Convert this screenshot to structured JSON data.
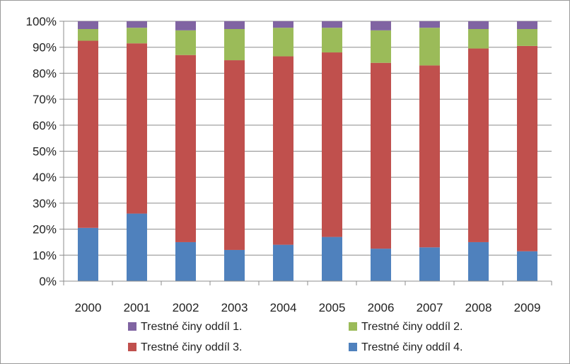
{
  "chart_data": {
    "type": "bar",
    "stacked": "percent",
    "categories": [
      "2000",
      "2001",
      "2002",
      "2003",
      "2004",
      "2005",
      "2006",
      "2007",
      "2008",
      "2009"
    ],
    "series": [
      {
        "name": "Trestné činy oddíl 4.",
        "color": "#4f81bd",
        "values": [
          20.5,
          26.0,
          15.0,
          12.0,
          14.0,
          17.0,
          12.5,
          13.0,
          15.0,
          11.5
        ]
      },
      {
        "name": "Trestné činy oddíl 3.",
        "color": "#c0504d",
        "values": [
          72.0,
          65.5,
          72.0,
          73.0,
          72.5,
          71.0,
          71.5,
          70.0,
          74.5,
          79.0
        ]
      },
      {
        "name": "Trestné činy oddíl 2.",
        "color": "#9bbb59",
        "values": [
          4.5,
          6.0,
          9.5,
          12.0,
          11.0,
          9.5,
          12.5,
          14.5,
          7.5,
          6.5
        ]
      },
      {
        "name": "Trestné činy oddíl 1.",
        "color": "#8064a2",
        "values": [
          3.0,
          2.5,
          3.5,
          3.0,
          2.5,
          2.5,
          3.5,
          2.5,
          3.0,
          3.0
        ]
      }
    ],
    "yticks": [
      "0%",
      "10%",
      "20%",
      "30%",
      "40%",
      "50%",
      "60%",
      "70%",
      "80%",
      "90%",
      "100%"
    ],
    "ylim": [
      0,
      100
    ],
    "grid": true,
    "legend_position": "bottom",
    "legend_order": [
      "Trestné činy oddíl 1.",
      "Trestné činy oddíl 2.",
      "Trestné činy oddíl 3.",
      "Trestné činy oddíl 4."
    ]
  }
}
